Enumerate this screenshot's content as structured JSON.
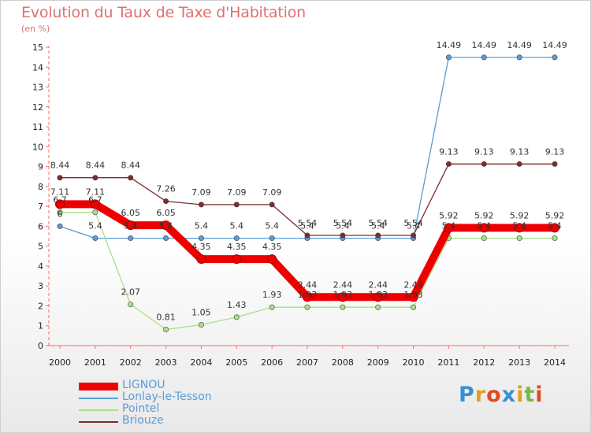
{
  "title": "Evolution du Taux de Taxe d'Habitation",
  "subtitle": "(en %)",
  "logo": {
    "letters": [
      "P",
      "r",
      "o",
      "x",
      "i",
      "t",
      "i"
    ],
    "colors": [
      "#3a8fd0",
      "#e0a020",
      "#e04a20",
      "#3a8fd0",
      "#e0a020",
      "#7ab648",
      "#e04a20"
    ]
  },
  "chart_data": {
    "type": "line",
    "x": [
      "2000",
      "2001",
      "2002",
      "2003",
      "2004",
      "2005",
      "2006",
      "2007",
      "2008",
      "2009",
      "2010",
      "2011",
      "2012",
      "2013",
      "2014"
    ],
    "y_ticks": [
      "0",
      "1",
      "2",
      "3",
      "4",
      "5",
      "6",
      "7",
      "8",
      "9",
      "10",
      "11",
      "12",
      "13",
      "14",
      "15"
    ],
    "ylim": [
      0,
      15
    ],
    "grid": false,
    "legend_placement": "bottom-left",
    "series": [
      {
        "name": "LIGNOU",
        "color": "#ee0000",
        "values": [
          7.11,
          7.11,
          6.05,
          6.05,
          4.35,
          4.35,
          4.35,
          2.44,
          2.44,
          2.44,
          2.44,
          5.92,
          5.92,
          5.92,
          5.92
        ],
        "labels": [
          "7.11",
          "7.11",
          "6.05",
          "6.05",
          "4.35",
          "4.35",
          "4.35",
          "2.44",
          "2.44",
          "2.44",
          "2.44",
          "5.92",
          "5.92",
          "5.92",
          "5.92"
        ]
      },
      {
        "name": "Lonlay-le-Tesson",
        "color": "#5b9bd5",
        "values": [
          6.0,
          5.4,
          5.4,
          5.4,
          5.4,
          5.4,
          5.4,
          5.4,
          5.4,
          5.4,
          5.4,
          14.49,
          14.49,
          14.49,
          14.49
        ],
        "labels": [
          "6",
          "5.4",
          "5.4",
          "5.4",
          "5.4",
          "5.4",
          "5.4",
          "5.4",
          "5.4",
          "5.4",
          "5.4",
          "14.49",
          "14.49",
          "14.49",
          "14.49"
        ]
      },
      {
        "name": "Pointel",
        "color": "#a8e08a",
        "values": [
          6.7,
          6.7,
          2.07,
          0.81,
          1.05,
          1.43,
          1.93,
          1.93,
          1.93,
          1.93,
          1.93,
          5.4,
          5.4,
          5.4,
          5.4
        ],
        "labels": [
          "6.7",
          "6.7",
          "2.07",
          "0.81",
          "1.05",
          "1.43",
          "1.93",
          "1.93",
          "1.93",
          "1.93",
          "1.93",
          "5.4",
          "5.4",
          "5.4",
          "5.4"
        ]
      },
      {
        "name": "Briouze",
        "color": "#7a2e2e",
        "values": [
          8.44,
          8.44,
          8.44,
          7.26,
          7.09,
          7.09,
          7.09,
          5.54,
          5.54,
          5.54,
          5.54,
          9.13,
          9.13,
          9.13,
          9.13
        ],
        "labels": [
          "8.44",
          "8.44",
          "8.44",
          "7.26",
          "7.09",
          "7.09",
          "7.09",
          "5.54",
          "5.54",
          "5.54",
          "5.54",
          "9.13",
          "9.13",
          "9.13",
          "9.13"
        ]
      }
    ]
  }
}
